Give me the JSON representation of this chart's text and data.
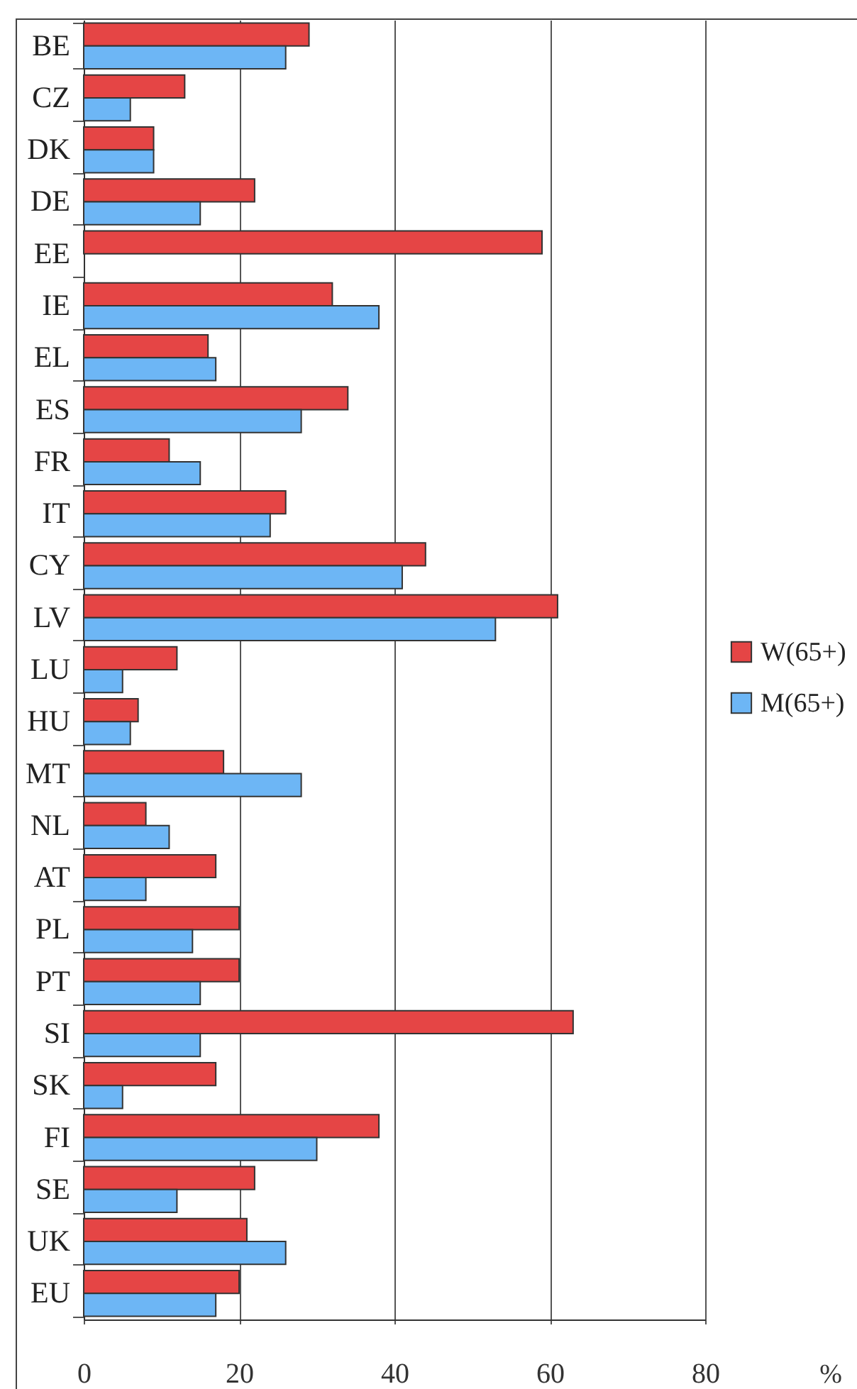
{
  "chart_data": {
    "type": "bar",
    "orientation": "horizontal",
    "categories": [
      "BE",
      "CZ",
      "DK",
      "DE",
      "EE",
      "IE",
      "EL",
      "ES",
      "FR",
      "IT",
      "CY",
      "LV",
      "LU",
      "HU",
      "MT",
      "NL",
      "AT",
      "PL",
      "PT",
      "SI",
      "SK",
      "FI",
      "SE",
      "UK",
      "EU"
    ],
    "series": [
      {
        "name": "W(65+)",
        "color": "#e54545",
        "values": [
          29,
          13,
          9,
          22,
          59,
          32,
          16,
          34,
          11,
          26,
          44,
          61,
          12,
          7,
          18,
          8,
          17,
          20,
          20,
          63,
          17,
          38,
          22,
          21,
          20
        ]
      },
      {
        "name": "M(65+)",
        "color": "#6db6f5",
        "values": [
          26,
          6,
          9,
          15,
          null,
          38,
          17,
          28,
          15,
          24,
          41,
          53,
          5,
          6,
          28,
          11,
          8,
          14,
          15,
          15,
          5,
          30,
          12,
          26,
          17
        ]
      }
    ],
    "xlabel": "%",
    "xlim": [
      0,
      80
    ],
    "xticks": [
      0,
      20,
      40,
      60,
      80
    ],
    "grid": "x",
    "legend": "right"
  }
}
